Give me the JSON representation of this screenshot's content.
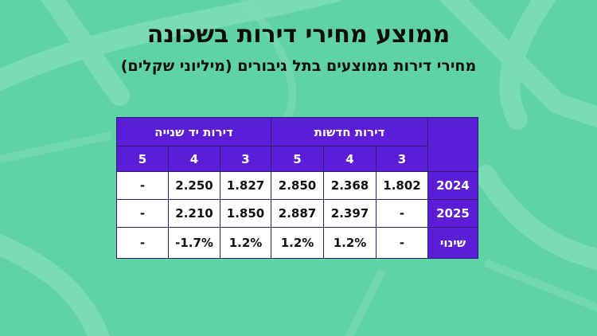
{
  "colors": {
    "background": "#5fd3a6",
    "header": "#5b1ed6",
    "cell": "#ffffff"
  },
  "title": "ממוצע מחירי דירות בשכונה",
  "subtitle": "מחירי דירות ממוצעים בתל גיבורים (מיליוני שקלים)",
  "chart_data": {
    "type": "table",
    "groups": [
      "דירות חדשות",
      "דירות יד שנייה"
    ],
    "columns": [
      "3",
      "4",
      "5",
      "3",
      "4",
      "5"
    ],
    "rows": [
      {
        "label": "2024",
        "cells": [
          "1.802",
          "2.368",
          "2.850",
          "1.827",
          "2.250",
          "-"
        ]
      },
      {
        "label": "2025",
        "cells": [
          "-",
          "2.397",
          "2.887",
          "1.850",
          "2.210",
          "-"
        ]
      },
      {
        "label": "שינוי",
        "cells": [
          "-",
          "1.2%",
          "1.2%",
          "1.2%",
          "1.7%-",
          "-"
        ]
      }
    ]
  }
}
